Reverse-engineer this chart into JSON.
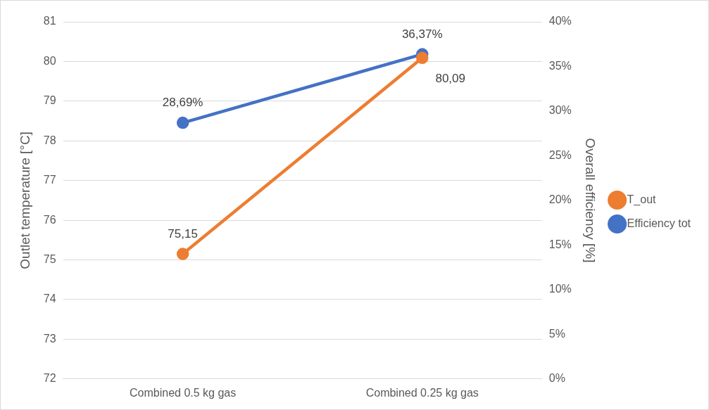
{
  "chart_data": {
    "type": "line",
    "categories": [
      "Combined 0.5 kg gas",
      "Combined 0.25 kg gas"
    ],
    "ylabel": "Outlet temperature [°C]",
    "y2label": "Overall efficiency [%]",
    "ylim": [
      72,
      81
    ],
    "yticks": [
      72,
      73,
      74,
      75,
      76,
      77,
      78,
      79,
      80,
      81
    ],
    "y2lim": [
      0,
      40
    ],
    "y2ticks": [
      {
        "value": 0,
        "label": "0%"
      },
      {
        "value": 5,
        "label": "5%"
      },
      {
        "value": 10,
        "label": "10%"
      },
      {
        "value": 15,
        "label": "15%"
      },
      {
        "value": 20,
        "label": "20%"
      },
      {
        "value": 25,
        "label": "25%"
      },
      {
        "value": 30,
        "label": "30%"
      },
      {
        "value": 35,
        "label": "35%"
      },
      {
        "value": 40,
        "label": "40%"
      }
    ],
    "series": [
      {
        "name": "T_out",
        "color": "#ed7d31",
        "values": [
          75.15,
          80.09
        ],
        "value_labels": [
          "75,15",
          "80,09"
        ]
      },
      {
        "name": "Efficiency tot",
        "color": "#4472c4",
        "axis": "y2",
        "values": [
          28.69,
          36.37
        ],
        "value_labels": [
          "28,69%",
          "36,37%"
        ]
      }
    ],
    "grid": "y",
    "legend": "right",
    "marker": "circle",
    "line_style": "solid"
  }
}
